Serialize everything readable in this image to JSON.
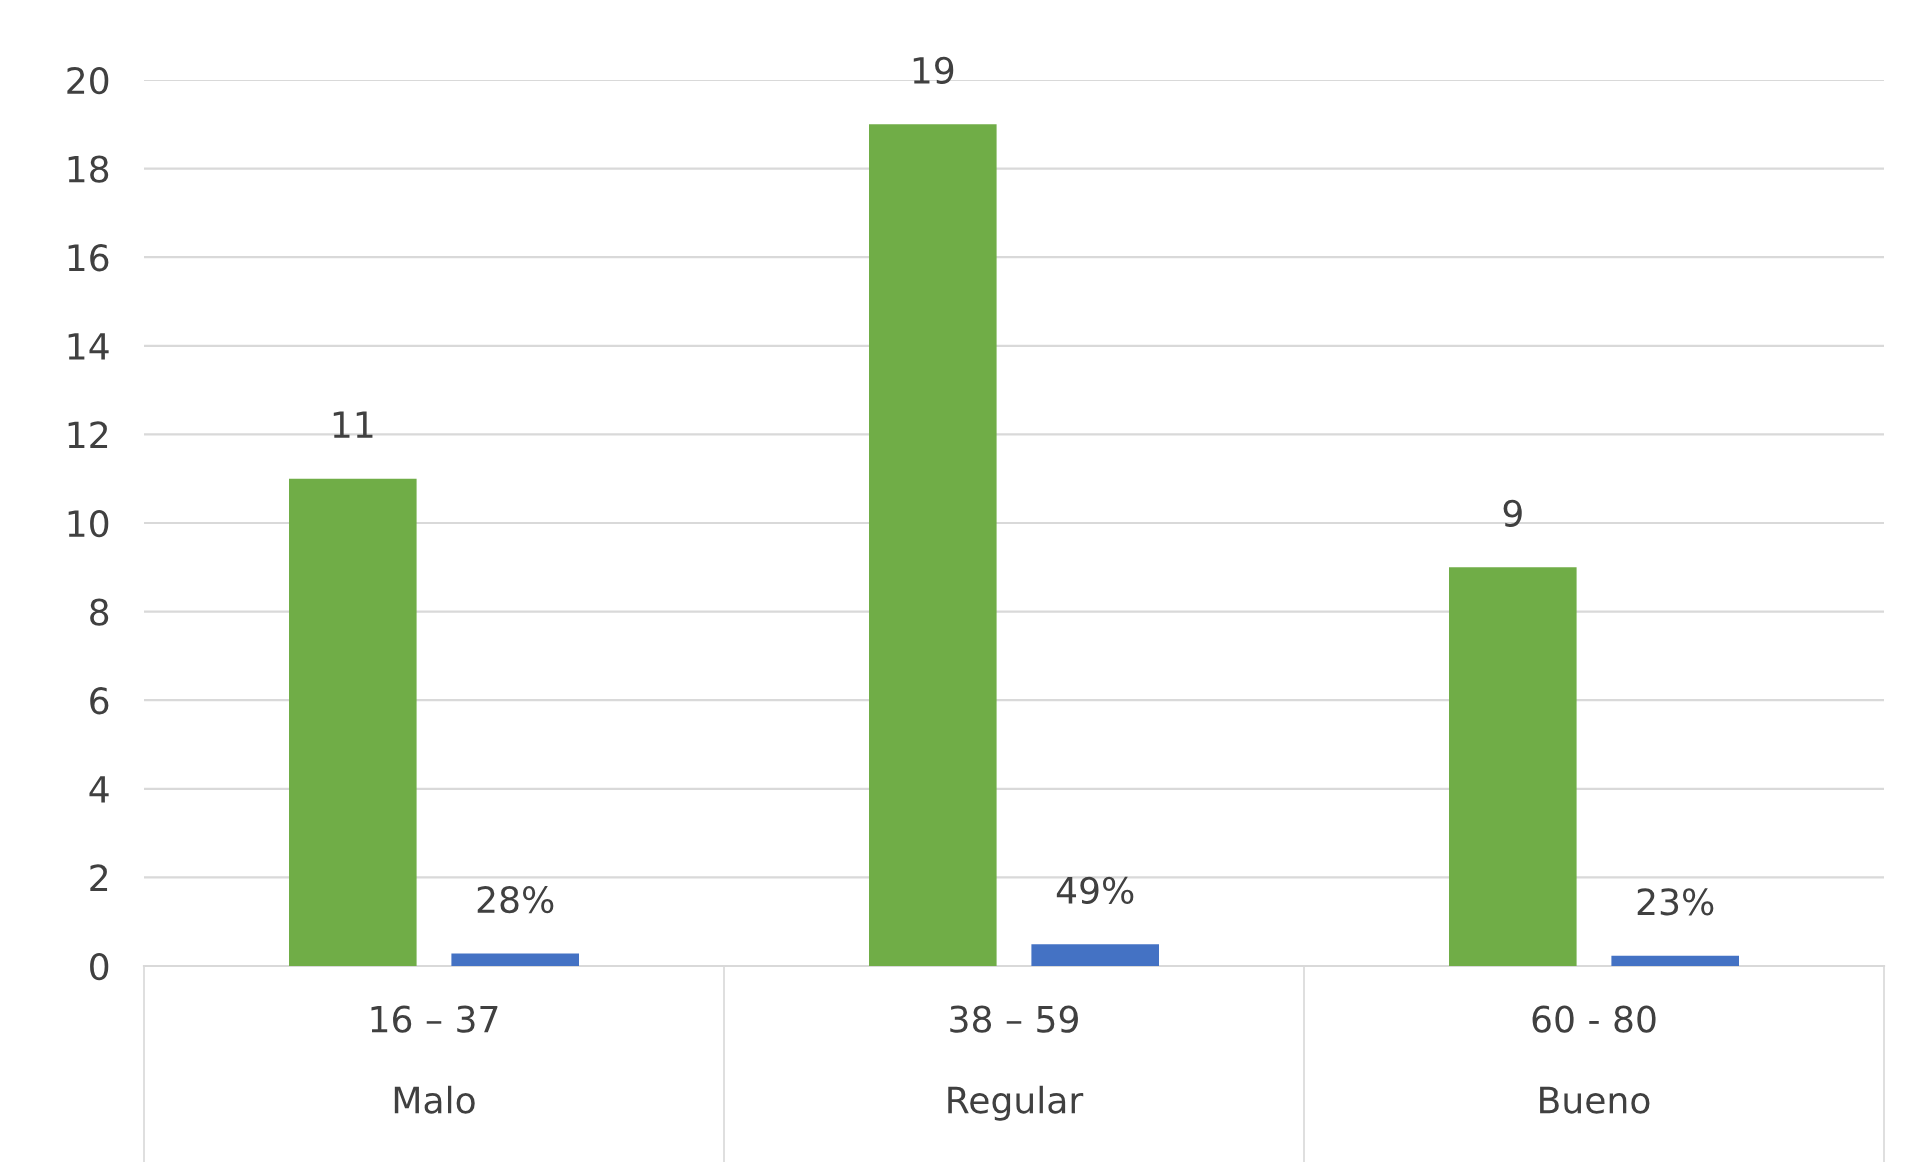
{
  "chart_data": {
    "type": "bar",
    "categories": [
      "16 – 37\n\nMalo",
      "38 – 59\n\nRegular",
      "60 - 80\n\nBueno"
    ],
    "series": [
      {
        "color": "#70ad47",
        "values": [
          11,
          19,
          9
        ],
        "value_labels": [
          "11",
          "19",
          "9"
        ]
      },
      {
        "color": "#4472c4",
        "values": [
          0.28,
          0.49,
          0.23
        ],
        "value_labels": [
          "28%",
          "49%",
          "23%"
        ]
      }
    ],
    "ylim": [
      0,
      20
    ],
    "yticks": [
      0,
      2,
      4,
      6,
      8,
      10,
      12,
      14,
      16,
      18,
      20
    ],
    "grid": "y",
    "legend": false
  }
}
